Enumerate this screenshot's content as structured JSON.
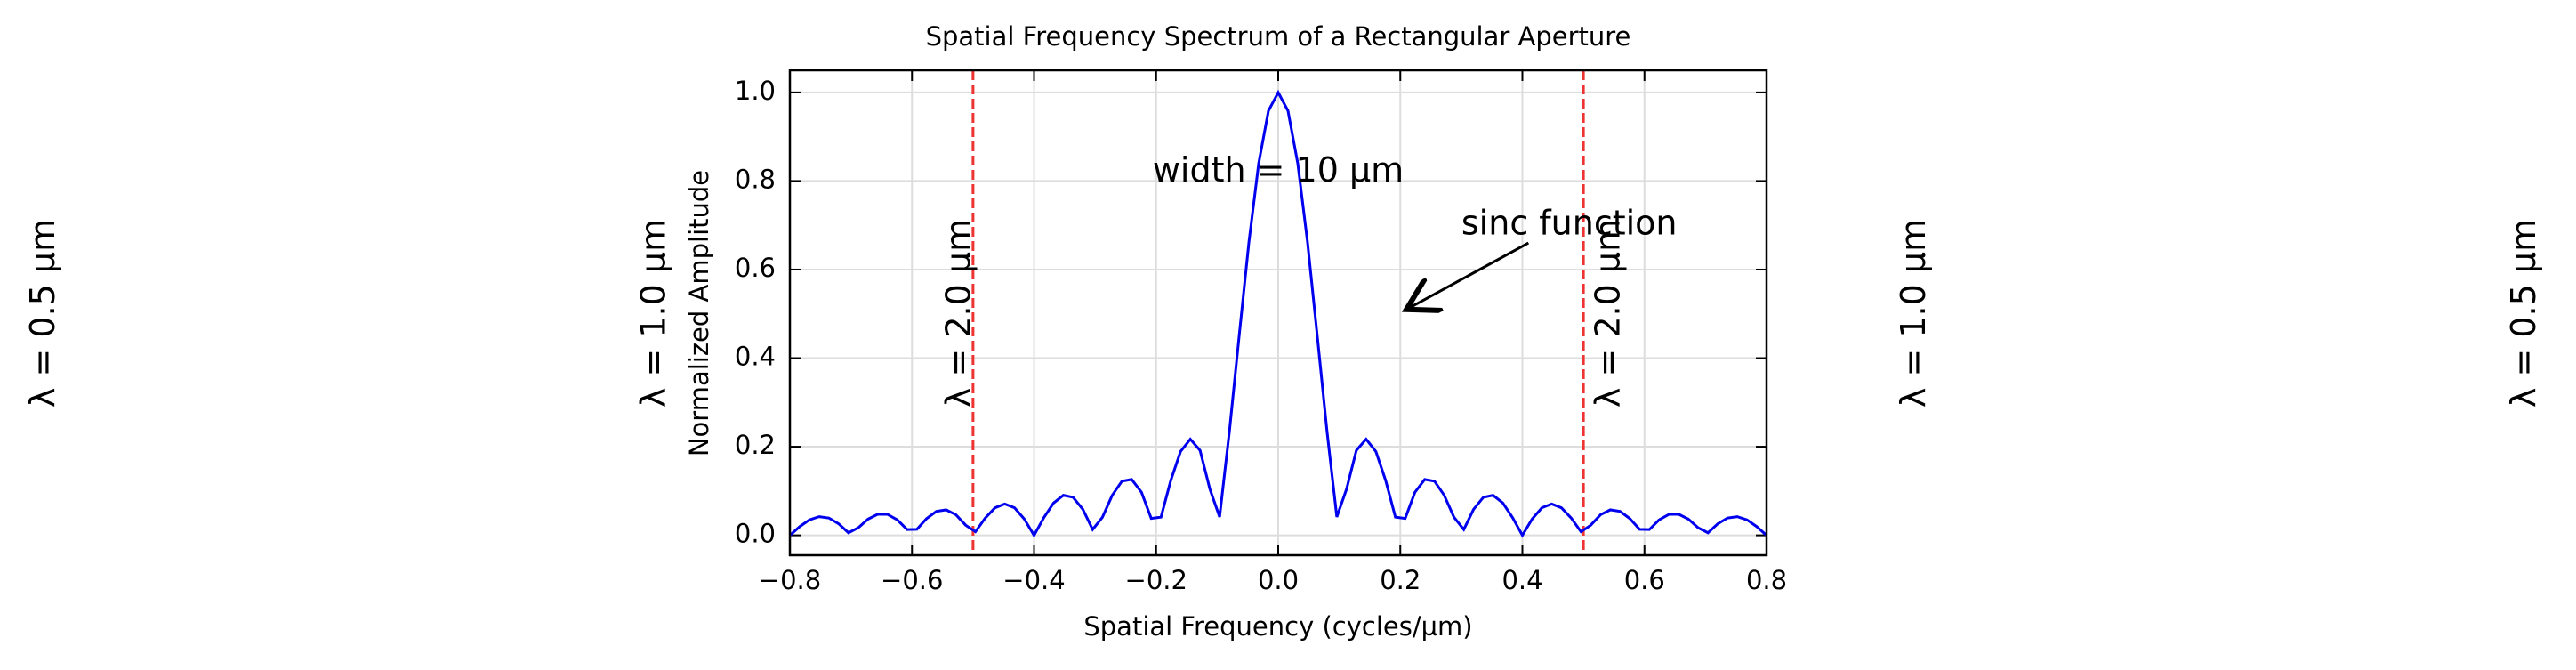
{
  "chart_data": {
    "type": "line",
    "title": "Spatial Frequency Spectrum of a Rectangular Aperture",
    "x_label": "Spatial Frequency (cycles/µm)",
    "y_label": "Normalized Amplitude",
    "x": [
      -0.8,
      -0.784,
      -0.768,
      -0.752,
      -0.736,
      -0.72,
      -0.704,
      -0.688,
      -0.672,
      -0.656,
      -0.64,
      -0.624,
      -0.608,
      -0.592,
      -0.576,
      -0.56,
      -0.544,
      -0.528,
      -0.512,
      -0.496,
      -0.48,
      -0.464,
      -0.448,
      -0.432,
      -0.416,
      -0.4,
      -0.384,
      -0.368,
      -0.352,
      -0.336,
      -0.32,
      -0.304,
      -0.288,
      -0.272,
      -0.256,
      -0.24,
      -0.224,
      -0.208,
      -0.192,
      -0.176,
      -0.16,
      -0.144,
      -0.128,
      -0.112,
      -0.096,
      -0.08,
      -0.064,
      -0.048,
      -0.032,
      -0.016,
      0,
      0.016,
      0.032,
      0.048,
      0.064,
      0.08,
      0.096,
      0.112,
      0.128,
      0.144,
      0.16,
      0.176,
      0.192,
      0.208,
      0.224,
      0.24,
      0.256,
      0.272,
      0.288,
      0.304,
      0.32,
      0.336,
      0.352,
      0.368,
      0.384,
      0.4,
      0.416,
      0.432,
      0.448,
      0.464,
      0.48,
      0.496,
      0.512,
      0.528,
      0.544,
      0.56,
      0.576,
      0.592,
      0.608,
      0.624,
      0.64,
      0.656,
      0.672,
      0.688,
      0.704,
      0.72,
      0.736,
      0.752,
      0.768,
      0.784,
      0.8
    ],
    "series": [
      {
        "name": "sinc function",
        "color": "#0000ee",
        "values": [
          0.0,
          0.0196,
          0.035,
          0.0422,
          0.0391,
          0.026,
          0.0057,
          0.017,
          0.0365,
          0.0477,
          0.0473,
          0.0349,
          0.013,
          0.0134,
          0.0378,
          0.0541,
          0.0575,
          0.0465,
          0.0229,
          0.008,
          0.039,
          0.0621,
          0.0709,
          0.0622,
          0.0369,
          0.0,
          0.0399,
          0.073,
          0.0903,
          0.0857,
          0.0585,
          0.0131,
          0.0407,
          0.0902,
          0.1221,
          0.1261,
          0.0973,
          0.0381,
          0.0412,
          0.1238,
          0.1892,
          0.2171,
          0.1916,
          0.1046,
          0.0415,
          0.2339,
          0.45,
          0.6618,
          0.8399,
          0.9585,
          1.0,
          0.9585,
          0.8399,
          0.6618,
          0.45,
          0.2339,
          0.0415,
          0.1046,
          0.1916,
          0.2171,
          0.1892,
          0.1238,
          0.0412,
          0.0381,
          0.0973,
          0.1261,
          0.1221,
          0.0902,
          0.0407,
          0.0131,
          0.0585,
          0.0857,
          0.0903,
          0.073,
          0.0399,
          0.0,
          0.0369,
          0.0622,
          0.0709,
          0.0621,
          0.039,
          0.008,
          0.0229,
          0.0465,
          0.0575,
          0.0541,
          0.0378,
          0.0134,
          0.013,
          0.0349,
          0.0473,
          0.0477,
          0.0365,
          0.017,
          0.0057,
          0.026,
          0.0391,
          0.0422,
          0.035,
          0.0196,
          0.0
        ]
      }
    ],
    "xlim": [
      -0.8,
      0.8
    ],
    "ylim": [
      -0.045,
      1.05
    ],
    "xticks": [
      {
        "value": -0.8,
        "label": "−0.8"
      },
      {
        "value": -0.6,
        "label": "−0.6"
      },
      {
        "value": -0.4,
        "label": "−0.4"
      },
      {
        "value": -0.2,
        "label": "−0.2"
      },
      {
        "value": 0,
        "label": "0.0"
      },
      0.2,
      0.4,
      0.6,
      0.8
    ],
    "yticks": [
      {
        "value": 0,
        "label": "0.0"
      },
      0.2,
      0.4,
      0.6,
      0.8,
      {
        "value": 1,
        "label": "1.0"
      }
    ],
    "grid": true,
    "vlines": [
      {
        "x": -0.5,
        "color": "#ee3333"
      },
      {
        "x": 0.5,
        "color": "#ee3333"
      }
    ],
    "wavelength_labels": [
      {
        "text": "λ = 0.5 µm",
        "x": -2.0
      },
      {
        "text": "λ = 1.0 µm",
        "x": -1.0
      },
      {
        "text": "λ = 2.0 µm",
        "x": -0.5
      },
      {
        "text": "λ = 2.0 µm",
        "x": 0.5
      },
      {
        "text": "λ = 1.0 µm",
        "x": 1.0
      },
      {
        "text": "λ = 0.5 µm",
        "x": 2.0
      }
    ],
    "annotations": [
      {
        "text": "width = 10 µm",
        "x": 0.0,
        "y": 0.82
      },
      {
        "text": "sinc function",
        "x": 0.3,
        "y": 0.7,
        "arrow_from": [
          0.41,
          0.66
        ],
        "arrow_to": [
          0.21,
          0.51
        ]
      }
    ]
  }
}
